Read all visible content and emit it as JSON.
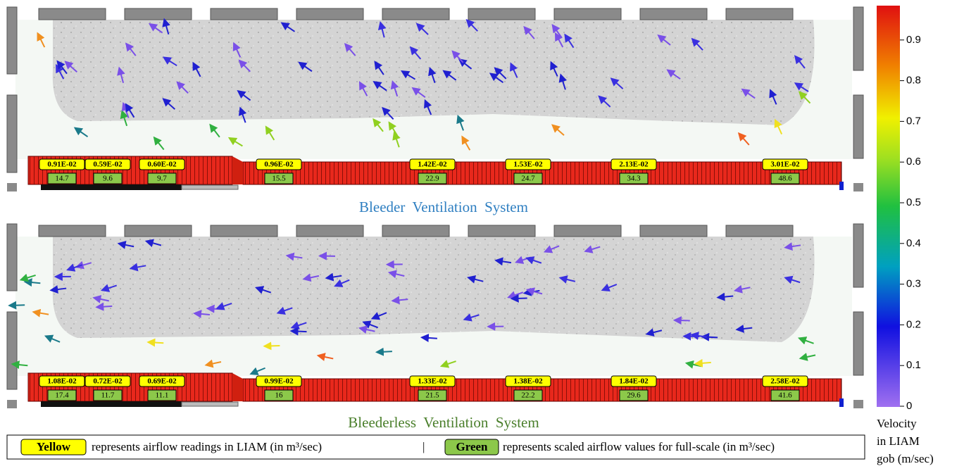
{
  "panels": [
    {
      "title": "Bleeder  Ventilation  System",
      "readings": [
        {
          "liam": "0.91E-02",
          "full": 14.7
        },
        {
          "liam": "0.59E-02",
          "full": 9.6
        },
        {
          "liam": "0.60E-02",
          "full": 9.7
        },
        {
          "liam": "0.96E-02",
          "full": 15.5
        },
        {
          "liam": "1.42E-02",
          "full": 22.9
        },
        {
          "liam": "1.53E-02",
          "full": 24.7
        },
        {
          "liam": "2.13E-02",
          "full": 34.3
        },
        {
          "liam": "3.01E-02",
          "full": 48.6
        }
      ]
    },
    {
      "title": "Bleederless  Ventilation  System",
      "readings": [
        {
          "liam": "1.08E-02",
          "full": 17.4
        },
        {
          "liam": "0.72E-02",
          "full": 11.7
        },
        {
          "liam": "0.69E-02",
          "full": 11.1
        },
        {
          "liam": "0.99E-02",
          "full": 16
        },
        {
          "liam": "1.33E-02",
          "full": 21.5
        },
        {
          "liam": "1.38E-02",
          "full": 22.2
        },
        {
          "liam": "1.84E-02",
          "full": 29.6
        },
        {
          "liam": "2.58E-02",
          "full": 41.6
        }
      ]
    }
  ],
  "legend": {
    "yellow": "Yellow",
    "yellow_text": "represents airflow readings in LIAM (in m³/sec)",
    "separator": "|",
    "green": "Green",
    "green_text": "represents scaled airflow values for full-scale (in m³/sec)"
  },
  "colorbar": {
    "ticks": [
      0,
      0.1,
      0.2,
      0.3,
      0.4,
      0.5,
      0.6,
      0.7,
      0.8,
      0.9
    ],
    "label": [
      "Velocity",
      "in LIAM",
      "gob (m/sec)"
    ]
  }
}
